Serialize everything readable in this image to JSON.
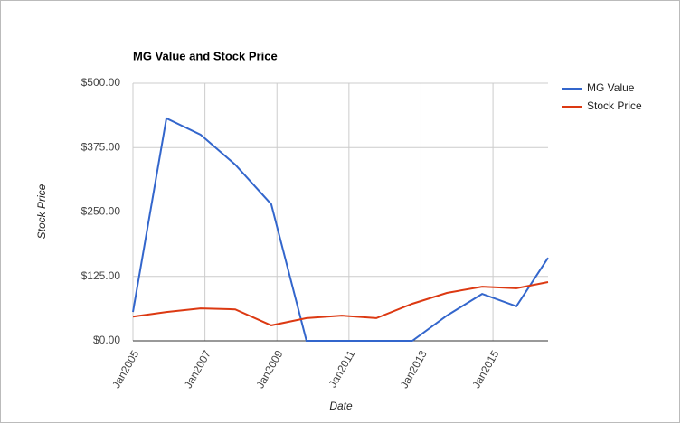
{
  "chart_data": {
    "type": "line",
    "title": "MG Value and Stock Price",
    "x_label": "Date",
    "y_label": "Stock Price",
    "x": [
      2005.0,
      2005.93,
      2006.88,
      2007.84,
      2008.84,
      2009.82,
      2010.8,
      2011.76,
      2012.76,
      2013.72,
      2014.7,
      2015.65,
      2016.53
    ],
    "series": [
      {
        "name": "MG Value",
        "color": "#3366cc",
        "values": [
          56,
          432,
          400,
          342,
          265,
          0,
          0,
          0,
          0,
          49,
          91,
          67,
          161
        ]
      },
      {
        "name": "Stock Price",
        "color": "#dc3912",
        "values": [
          47,
          56,
          63,
          61,
          30,
          44,
          49,
          44,
          72,
          93,
          105,
          102,
          114
        ]
      }
    ],
    "xlim": [
      2005.0,
      2016.53
    ],
    "xticks": [
      {
        "value": 2005,
        "label": "Jan2005"
      },
      {
        "value": 2007,
        "label": "Jan2007"
      },
      {
        "value": 2009,
        "label": "Jan2009"
      },
      {
        "value": 2011,
        "label": "Jan2011"
      },
      {
        "value": 2013,
        "label": "Jan2013"
      },
      {
        "value": 2015,
        "label": "Jan2015"
      }
    ],
    "ylim": [
      0,
      500
    ],
    "yticks": [
      {
        "value": 0,
        "label": "$0.00"
      },
      {
        "value": 125,
        "label": "$125.00"
      },
      {
        "value": 250,
        "label": "$250.00"
      },
      {
        "value": 375,
        "label": "$375.00"
      },
      {
        "value": 500,
        "label": "$500.00"
      }
    ],
    "grid": true,
    "legend": "right"
  }
}
